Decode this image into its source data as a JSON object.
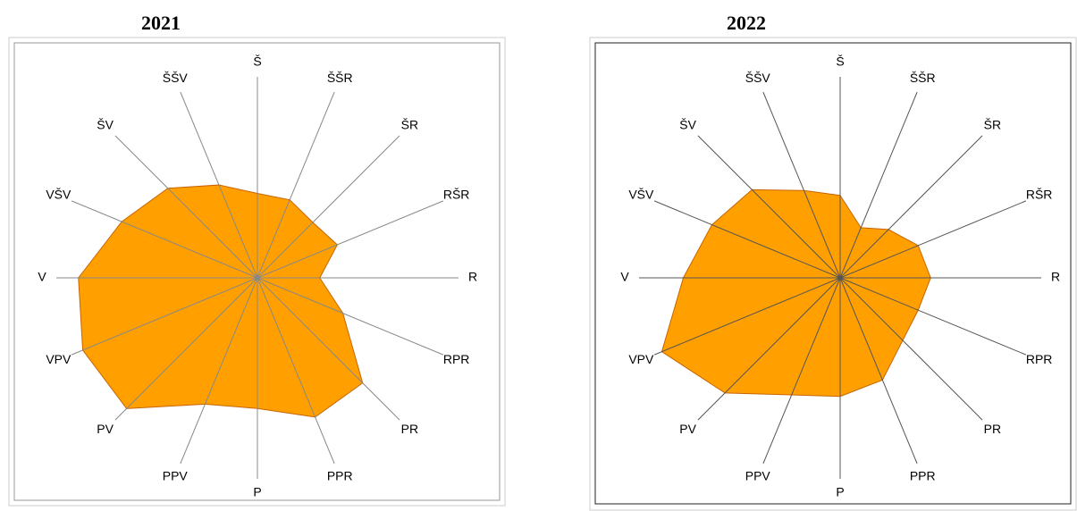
{
  "chart_data": [
    {
      "type": "radar",
      "title": "2021",
      "categories": [
        "Š",
        "ŠŠR",
        "ŠR",
        "RŠR",
        "R",
        "RPR",
        "PR",
        "PPR",
        "P",
        "PPV",
        "PV",
        "VPV",
        "V",
        "VŠV",
        "ŠV",
        "ŠŠV"
      ],
      "values": [
        42,
        42,
        39,
        43,
        31,
        46,
        74,
        75,
        65,
        68,
        92,
        94,
        89,
        73,
        63,
        50
      ],
      "color": "#ffa000",
      "ylim": [
        0,
        100
      ]
    },
    {
      "type": "radar",
      "title": "2022",
      "categories": [
        "Š",
        "ŠŠR",
        "ŠR",
        "RŠR",
        "R",
        "RPR",
        "PR",
        "PPR",
        "P",
        "PPV",
        "PV",
        "VPV",
        "V",
        "VŠV",
        "ŠV",
        "ŠŠV"
      ],
      "values": [
        41,
        27,
        34,
        42,
        45,
        42,
        44,
        55,
        59,
        63,
        81,
        96,
        78,
        69,
        62,
        47
      ],
      "color": "#ffa000",
      "ylim": [
        0,
        100
      ]
    }
  ]
}
